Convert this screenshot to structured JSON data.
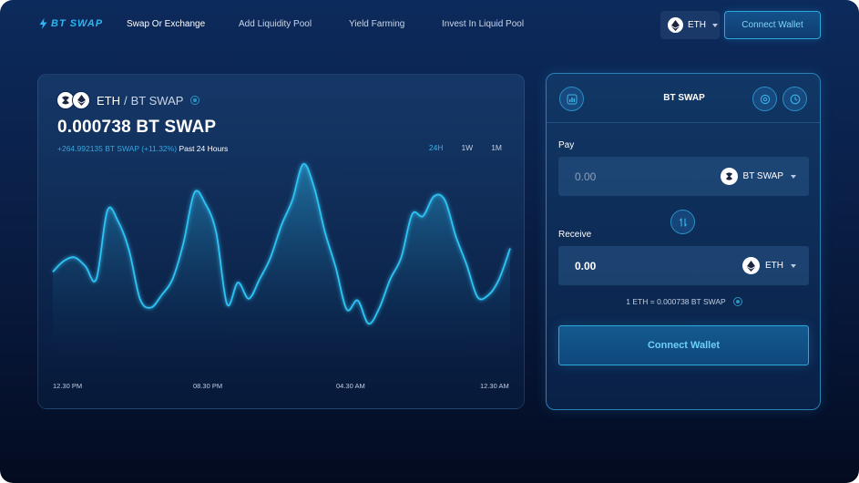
{
  "brand": {
    "name": "BT SWAP"
  },
  "nav": {
    "links": [
      "Swap Or Exchange",
      "Add Liquidity Pool",
      "Yield Farming",
      "Invest In Liquid Pool"
    ],
    "network_label": "ETH",
    "connect_label": "Connect Wallet"
  },
  "market": {
    "base": "ETH",
    "separator": "/",
    "quote": "BT SWAP",
    "price": "0.000738 BT SWAP",
    "change": "+264.992135 BT SWAP (+11.32%)",
    "period": "Past 24 Hours",
    "ranges": [
      "24H",
      "1W",
      "1M"
    ],
    "active_range": "24H",
    "x_labels": [
      "12.30 PM",
      "08.30 PM",
      "04.30 AM",
      "12.30 AM"
    ]
  },
  "chart_data": {
    "type": "area",
    "title": "",
    "xlabel": "",
    "ylabel": "",
    "x_tick_labels": [
      "12.30 PM",
      "08.30 PM",
      "04.30 AM",
      "12.30 AM"
    ],
    "y_relative": [
      0.4,
      0.46,
      0.48,
      0.43,
      0.36,
      0.74,
      0.68,
      0.52,
      0.25,
      0.2,
      0.27,
      0.36,
      0.56,
      0.84,
      0.78,
      0.62,
      0.22,
      0.34,
      0.25,
      0.36,
      0.48,
      0.66,
      0.8,
      1.0,
      0.87,
      0.62,
      0.42,
      0.19,
      0.24,
      0.11,
      0.2,
      0.36,
      0.48,
      0.72,
      0.71,
      0.82,
      0.8,
      0.6,
      0.44,
      0.26,
      0.27,
      0.36,
      0.53
    ],
    "accent": "#2fc3f5",
    "grid": false,
    "legend": "none"
  },
  "swap": {
    "title": "BT SWAP",
    "pay_label": "Pay",
    "pay_value": "0.00",
    "pay_token": "BT SWAP",
    "receive_label": "Receive",
    "receive_value": "0.00",
    "receive_token": "ETH",
    "rate": "1 ETH = 0.000738 BT SWAP",
    "connect_label": "Connect Wallet"
  },
  "icons": {
    "brand": "bolt-icon",
    "eth": "ethereum-icon",
    "btswap": "btswap-coin-icon",
    "chart": "bar-chart-icon",
    "settings": "settings-icon",
    "history": "clock-icon",
    "switch": "swap-arrows-icon",
    "info": "info-icon"
  },
  "colors": {
    "accent": "#2fb6f0",
    "background_top": "#0c2a5c",
    "background_bottom": "#030b1f"
  }
}
